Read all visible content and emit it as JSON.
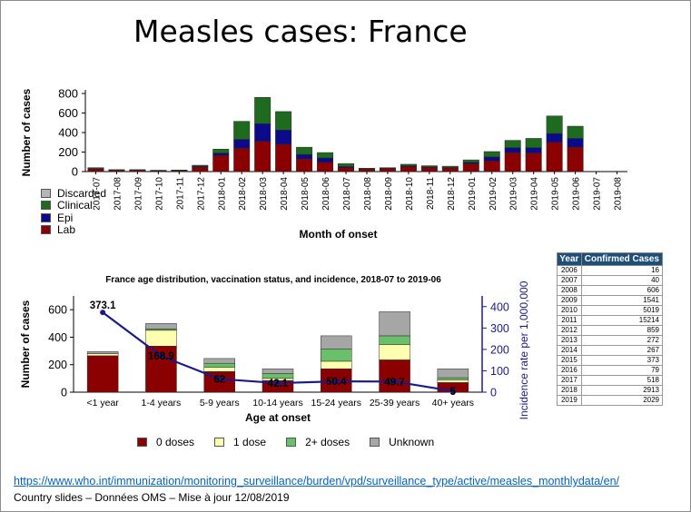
{
  "title": "Measles cases: France",
  "colors": {
    "lab": "#8b0000",
    "epi": "#0a0a8a",
    "clinical": "#1e6a1e",
    "discarded": "#b5b5b5",
    "zero_doses": "#8b0000",
    "one_dose": "#ffffb0",
    "two_plus_doses": "#6abf6a",
    "unknown": "#a6a6a6",
    "incidence_line": "#1a1a8c",
    "table_header": "#1f4e79",
    "link": "#0563c1"
  },
  "chart_data": [
    {
      "type": "bar",
      "stacked": true,
      "title": "",
      "xlabel": "Month of onset",
      "ylabel": "Number of cases",
      "ylim": [
        0,
        800
      ],
      "yticks": [
        0,
        200,
        400,
        600,
        800
      ],
      "categories": [
        "2017-07",
        "2017-08",
        "2017-09",
        "2017-10",
        "2017-11",
        "2017-12",
        "2018-01",
        "2018-02",
        "2018-03",
        "2018-04",
        "2018-05",
        "2018-06",
        "2018-07",
        "2018-08",
        "2018-09",
        "2018-10",
        "2018-11",
        "2018-12",
        "2019-01",
        "2019-02",
        "2019-03",
        "2019-04",
        "2019-05",
        "2019-06",
        "2019-07",
        "2019-08"
      ],
      "series": [
        {
          "name": "Lab",
          "color_key": "lab",
          "values": [
            25,
            12,
            12,
            8,
            10,
            45,
            165,
            240,
            310,
            280,
            130,
            95,
            40,
            25,
            30,
            50,
            40,
            35,
            80,
            110,
            195,
            190,
            300,
            250,
            0,
            0
          ]
        },
        {
          "name": "Epi",
          "color_key": "epi",
          "values": [
            5,
            3,
            3,
            2,
            2,
            10,
            25,
            90,
            180,
            145,
            45,
            45,
            12,
            3,
            5,
            10,
            8,
            7,
            15,
            40,
            50,
            55,
            90,
            90,
            0,
            0
          ]
        },
        {
          "name": "Clinical",
          "color_key": "clinical",
          "values": [
            10,
            5,
            5,
            4,
            4,
            10,
            40,
            185,
            270,
            190,
            75,
            55,
            30,
            7,
            5,
            15,
            12,
            13,
            25,
            55,
            75,
            95,
            180,
            125,
            0,
            0
          ]
        },
        {
          "name": "Discarded",
          "color_key": "discarded",
          "values": [
            0,
            0,
            0,
            0,
            0,
            0,
            0,
            0,
            0,
            0,
            0,
            0,
            0,
            0,
            0,
            0,
            0,
            0,
            0,
            0,
            0,
            0,
            0,
            0,
            0,
            0
          ]
        }
      ],
      "legend": [
        "Discarded",
        "Clinical",
        "Epi",
        "Lab"
      ]
    },
    {
      "type": "bar",
      "stacked": true,
      "title": "France age distribution, vaccination status, and incidence, 2018-07 to 2019-06",
      "xlabel": "Age at onset",
      "ylabel": "Number of cases",
      "y2label": "Incidence rate per 1,000,000",
      "ylim": [
        0,
        700
      ],
      "yticks": [
        0,
        200,
        400,
        600
      ],
      "y2lim": [
        0,
        450
      ],
      "y2ticks": [
        0,
        100,
        200,
        300,
        400
      ],
      "categories": [
        "<1 year",
        "1-4 years",
        "5-9 years",
        "10-14 years",
        "15-24 years",
        "25-39 years",
        "40+ years"
      ],
      "series": [
        {
          "name": "0 doses",
          "color_key": "zero_doses",
          "values": [
            265,
            335,
            150,
            85,
            170,
            235,
            70
          ]
        },
        {
          "name": "1 dose",
          "color_key": "one_dose",
          "values": [
            15,
            115,
            30,
            15,
            55,
            110,
            20
          ]
        },
        {
          "name": "2+ doses",
          "color_key": "two_plus_doses",
          "values": [
            0,
            10,
            30,
            35,
            90,
            65,
            15
          ]
        },
        {
          "name": "Unknown",
          "color_key": "unknown",
          "values": [
            15,
            40,
            35,
            35,
            95,
            175,
            65
          ]
        }
      ],
      "line": {
        "name": "Incidence rate per 1,000,000",
        "color_key": "incidence_line",
        "values": [
          373.1,
          168.9,
          62,
          42.1,
          50.4,
          49.7,
          5
        ],
        "labels": [
          "373.1",
          "168.9",
          "62",
          "42.1",
          "50.4",
          "49.7",
          "5"
        ]
      },
      "legend": [
        "0 doses",
        "1 dose",
        "2+ doses",
        "Unknown"
      ]
    }
  ],
  "table": {
    "headers": [
      "Year",
      "Confirmed Cases"
    ],
    "rows": [
      [
        "2006",
        "16"
      ],
      [
        "2007",
        "40"
      ],
      [
        "2008",
        "606"
      ],
      [
        "2009",
        "1541"
      ],
      [
        "2010",
        "5019"
      ],
      [
        "2011",
        "15214"
      ],
      [
        "2012",
        "859"
      ],
      [
        "2013",
        "272"
      ],
      [
        "2014",
        "267"
      ],
      [
        "2015",
        "373"
      ],
      [
        "2016",
        "79"
      ],
      [
        "2017",
        "518"
      ],
      [
        "2018",
        "2913"
      ],
      [
        "2019",
        "2029"
      ]
    ]
  },
  "footer": {
    "link": "https://www.who.int/immunization/monitoring_surveillance/burden/vpd/surveillance_type/active/measles_monthlydata/en/",
    "note": "Country slides – Données OMS – Mise à jour 12/08/2019"
  }
}
